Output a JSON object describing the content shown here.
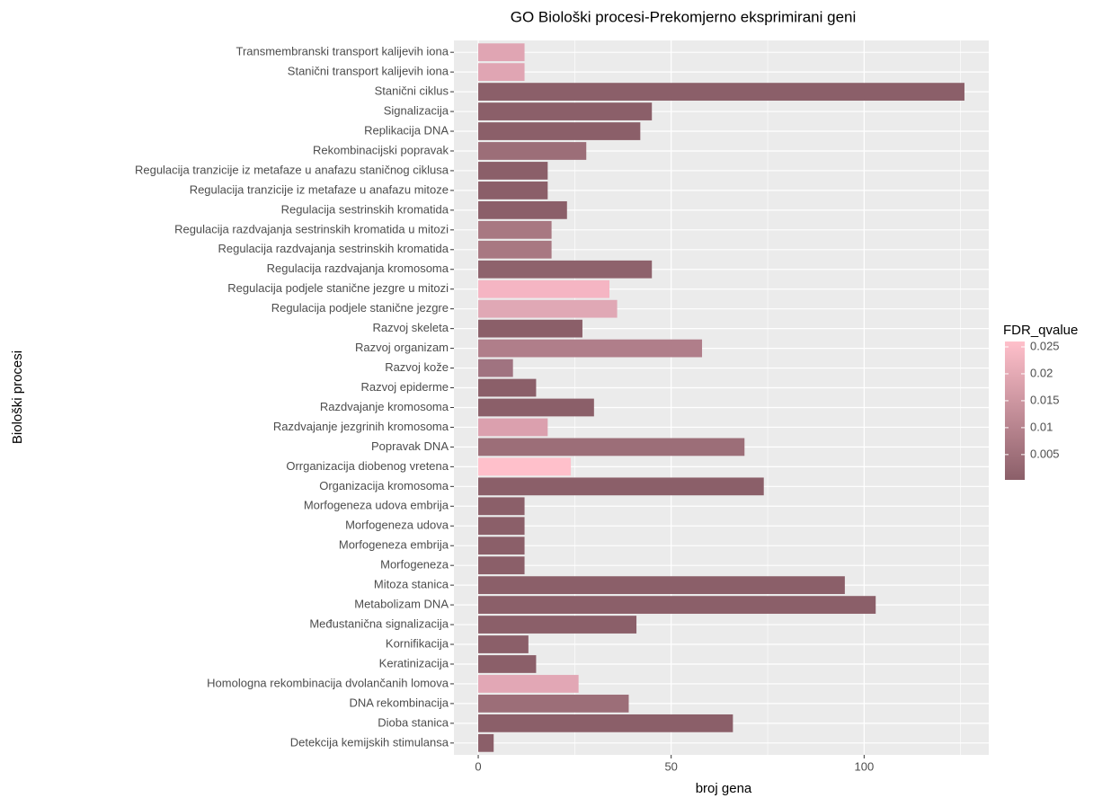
{
  "chart_data": {
    "type": "barh",
    "title": "GO Biološki procesi-Prekomjerno eksprimirani geni",
    "xlabel": "broj gena",
    "ylabel": "Biološki procesi",
    "categories": [
      "Transmembranski transport kalijevih iona",
      "Stanični transport kalijevih iona",
      "Stanični ciklus",
      "Signalizacija",
      "Replikacija DNA",
      "Rekombinacijski popravak",
      "Regulacija tranzicije iz metafaze u anafazu staničnog ciklusa",
      "Regulacija tranzicije iz metafaze u anafazu mitoze",
      "Regulacija sestrinskih kromatida",
      "Regulacija razdvajanja sestrinskih kromatida u mitozi",
      "Regulacija razdvajanja sestrinskih kromatida",
      "Regulacija razdvajanja kromosoma",
      "Regulacija podjele stanične jezgre u mitozi",
      "Regulacija podjele stanične jezgre",
      "Razvoj skeleta",
      "Razvoj organizam",
      "Razvoj kože",
      "Razvoj epiderme",
      "Razdvajanje kromosoma",
      "Razdvajanje jezgrinih kromosoma",
      "Popravak DNA",
      "Orrganizacija diobenog vretena",
      "Organizacija kromosoma",
      "Morfogeneza udova embrija",
      "Morfogeneza udova",
      "Morfogeneza embrija",
      "Morfogeneza",
      "Mitoza stanica",
      "Metabolizam DNA",
      "Međustanična signalizacija",
      "Kornifikacija",
      "Keratinizacija",
      "Homologna rekombinacija dvolančanih lomova",
      "DNA rekombinacija",
      "Dioba stanica",
      "Detekcija kemijskih stimulansa"
    ],
    "values": [
      12,
      12,
      126,
      45,
      42,
      28,
      18,
      18,
      23,
      19,
      19,
      45,
      34,
      36,
      27,
      58,
      9,
      15,
      30,
      18,
      69,
      24,
      74,
      12,
      12,
      12,
      12,
      95,
      103,
      41,
      13,
      15,
      26,
      39,
      66,
      4
    ],
    "colors": [
      "#e0a5b3",
      "#e0a5b3",
      "#8b5f69",
      "#8b5f69",
      "#8b5f69",
      "#9c6e78",
      "#8b5f69",
      "#8b5f69",
      "#8b5f69",
      "#a87882",
      "#a87882",
      "#8e626c",
      "#f5b5c3",
      "#e0a8b5",
      "#8b5f69",
      "#b07e8a",
      "#a07380",
      "#8b5f69",
      "#8b5f69",
      "#dba0ae",
      "#9c6e78",
      "#ffc0cb",
      "#8b5f69",
      "#8b5f69",
      "#8b5f69",
      "#8b5f69",
      "#8b5f69",
      "#8b5f69",
      "#8b5f69",
      "#8b5f69",
      "#8b5f69",
      "#8b5f69",
      "#e2a7b5",
      "#9c6e78",
      "#8b5f69",
      "#8b5f69"
    ],
    "xlim": [
      -6.3,
      132.3
    ],
    "xticks": [
      0,
      50,
      100
    ],
    "xminor": [
      25,
      75,
      125
    ],
    "grid": true,
    "legend": {
      "title": "FDR_qvalue",
      "limits": [
        0.0003,
        0.026
      ],
      "ticks": [
        0.005,
        0.01,
        0.015,
        0.02,
        0.025
      ],
      "low": "#8b5f69",
      "high": "#ffc0cb"
    }
  }
}
